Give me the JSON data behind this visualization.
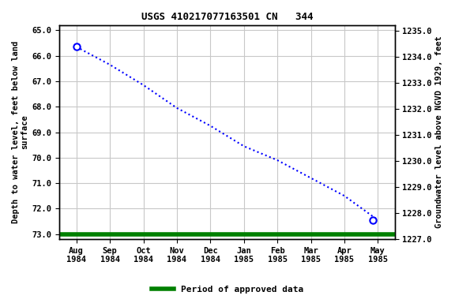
{
  "title": "USGS 410217077163501 CN   344",
  "x_tick_labels": [
    "Aug\n1984",
    "Sep\n1984",
    "Oct\n1984",
    "Nov\n1984",
    "Dec\n1984",
    "Jan\n1985",
    "Feb\n1985",
    "Mar\n1985",
    "Apr\n1985",
    "May\n1985"
  ],
  "line_x_numeric": [
    0,
    1,
    2,
    3,
    4,
    5,
    6,
    7,
    8,
    9
  ],
  "line_y_depth": [
    65.65,
    66.35,
    67.15,
    68.05,
    68.75,
    69.55,
    70.1,
    70.8,
    71.5,
    72.45
  ],
  "marker_points": [
    [
      0,
      65.65
    ],
    [
      8.85,
      72.45
    ]
  ],
  "ylim_left": [
    73.2,
    64.8
  ],
  "ylim_right": [
    1227.0,
    1235.2
  ],
  "right_ticks": [
    1227.0,
    1228.0,
    1229.0,
    1230.0,
    1231.0,
    1232.0,
    1233.0,
    1234.0,
    1235.0
  ],
  "left_ticks": [
    65.0,
    66.0,
    67.0,
    68.0,
    69.0,
    70.0,
    71.0,
    72.0,
    73.0
  ],
  "line_color": "#0000ff",
  "marker_facecolor": "#ffffff",
  "marker_edgecolor": "#0000ff",
  "green_line_color": "#008000",
  "background_color": "#ffffff",
  "grid_color": "#c8c8c8",
  "ylabel_left": "Depth to water level, feet below land\nsurface",
  "ylabel_right": "Groundwater level above NGVD 1929, feet",
  "legend_label": "Period of approved data",
  "title_fontsize": 9,
  "axis_fontsize": 7.5,
  "tick_fontsize": 7.5,
  "legend_fontsize": 8
}
